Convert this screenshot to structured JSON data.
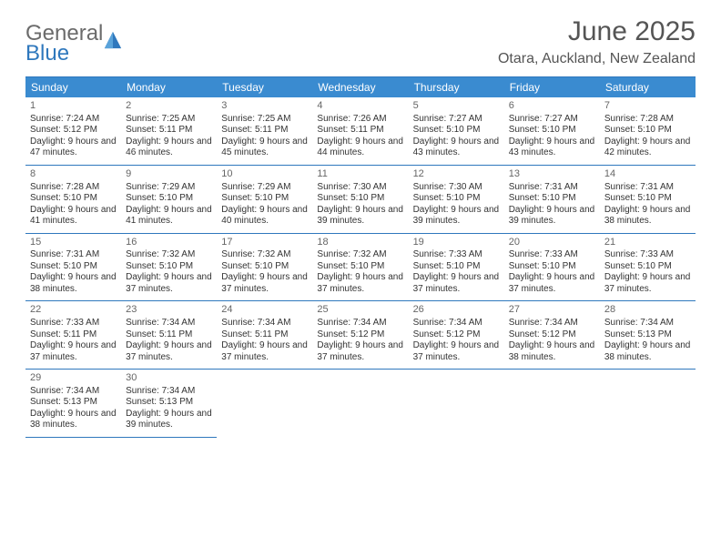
{
  "brand": {
    "word1": "General",
    "word2": "Blue",
    "color1": "#6b6b6b",
    "color2": "#2f78bd"
  },
  "header": {
    "title": "June 2025",
    "location": "Otara, Auckland, New Zealand"
  },
  "styling": {
    "header_bg": "#3a8bd0",
    "border_color": "#2f78bd",
    "page_bg": "#ffffff",
    "text_color": "#333333"
  },
  "dayNames": [
    "Sunday",
    "Monday",
    "Tuesday",
    "Wednesday",
    "Thursday",
    "Friday",
    "Saturday"
  ],
  "startOffset": 0,
  "days": [
    {
      "n": "1",
      "sunrise": "7:24 AM",
      "sunset": "5:12 PM",
      "daylight": "9 hours and 47 minutes."
    },
    {
      "n": "2",
      "sunrise": "7:25 AM",
      "sunset": "5:11 PM",
      "daylight": "9 hours and 46 minutes."
    },
    {
      "n": "3",
      "sunrise": "7:25 AM",
      "sunset": "5:11 PM",
      "daylight": "9 hours and 45 minutes."
    },
    {
      "n": "4",
      "sunrise": "7:26 AM",
      "sunset": "5:11 PM",
      "daylight": "9 hours and 44 minutes."
    },
    {
      "n": "5",
      "sunrise": "7:27 AM",
      "sunset": "5:10 PM",
      "daylight": "9 hours and 43 minutes."
    },
    {
      "n": "6",
      "sunrise": "7:27 AM",
      "sunset": "5:10 PM",
      "daylight": "9 hours and 43 minutes."
    },
    {
      "n": "7",
      "sunrise": "7:28 AM",
      "sunset": "5:10 PM",
      "daylight": "9 hours and 42 minutes."
    },
    {
      "n": "8",
      "sunrise": "7:28 AM",
      "sunset": "5:10 PM",
      "daylight": "9 hours and 41 minutes."
    },
    {
      "n": "9",
      "sunrise": "7:29 AM",
      "sunset": "5:10 PM",
      "daylight": "9 hours and 41 minutes."
    },
    {
      "n": "10",
      "sunrise": "7:29 AM",
      "sunset": "5:10 PM",
      "daylight": "9 hours and 40 minutes."
    },
    {
      "n": "11",
      "sunrise": "7:30 AM",
      "sunset": "5:10 PM",
      "daylight": "9 hours and 39 minutes."
    },
    {
      "n": "12",
      "sunrise": "7:30 AM",
      "sunset": "5:10 PM",
      "daylight": "9 hours and 39 minutes."
    },
    {
      "n": "13",
      "sunrise": "7:31 AM",
      "sunset": "5:10 PM",
      "daylight": "9 hours and 39 minutes."
    },
    {
      "n": "14",
      "sunrise": "7:31 AM",
      "sunset": "5:10 PM",
      "daylight": "9 hours and 38 minutes."
    },
    {
      "n": "15",
      "sunrise": "7:31 AM",
      "sunset": "5:10 PM",
      "daylight": "9 hours and 38 minutes."
    },
    {
      "n": "16",
      "sunrise": "7:32 AM",
      "sunset": "5:10 PM",
      "daylight": "9 hours and 37 minutes."
    },
    {
      "n": "17",
      "sunrise": "7:32 AM",
      "sunset": "5:10 PM",
      "daylight": "9 hours and 37 minutes."
    },
    {
      "n": "18",
      "sunrise": "7:32 AM",
      "sunset": "5:10 PM",
      "daylight": "9 hours and 37 minutes."
    },
    {
      "n": "19",
      "sunrise": "7:33 AM",
      "sunset": "5:10 PM",
      "daylight": "9 hours and 37 minutes."
    },
    {
      "n": "20",
      "sunrise": "7:33 AM",
      "sunset": "5:10 PM",
      "daylight": "9 hours and 37 minutes."
    },
    {
      "n": "21",
      "sunrise": "7:33 AM",
      "sunset": "5:10 PM",
      "daylight": "9 hours and 37 minutes."
    },
    {
      "n": "22",
      "sunrise": "7:33 AM",
      "sunset": "5:11 PM",
      "daylight": "9 hours and 37 minutes."
    },
    {
      "n": "23",
      "sunrise": "7:34 AM",
      "sunset": "5:11 PM",
      "daylight": "9 hours and 37 minutes."
    },
    {
      "n": "24",
      "sunrise": "7:34 AM",
      "sunset": "5:11 PM",
      "daylight": "9 hours and 37 minutes."
    },
    {
      "n": "25",
      "sunrise": "7:34 AM",
      "sunset": "5:12 PM",
      "daylight": "9 hours and 37 minutes."
    },
    {
      "n": "26",
      "sunrise": "7:34 AM",
      "sunset": "5:12 PM",
      "daylight": "9 hours and 37 minutes."
    },
    {
      "n": "27",
      "sunrise": "7:34 AM",
      "sunset": "5:12 PM",
      "daylight": "9 hours and 38 minutes."
    },
    {
      "n": "28",
      "sunrise": "7:34 AM",
      "sunset": "5:13 PM",
      "daylight": "9 hours and 38 minutes."
    },
    {
      "n": "29",
      "sunrise": "7:34 AM",
      "sunset": "5:13 PM",
      "daylight": "9 hours and 38 minutes."
    },
    {
      "n": "30",
      "sunrise": "7:34 AM",
      "sunset": "5:13 PM",
      "daylight": "9 hours and 39 minutes."
    }
  ],
  "labels": {
    "sunrise": "Sunrise: ",
    "sunset": "Sunset: ",
    "daylight": "Daylight: "
  }
}
